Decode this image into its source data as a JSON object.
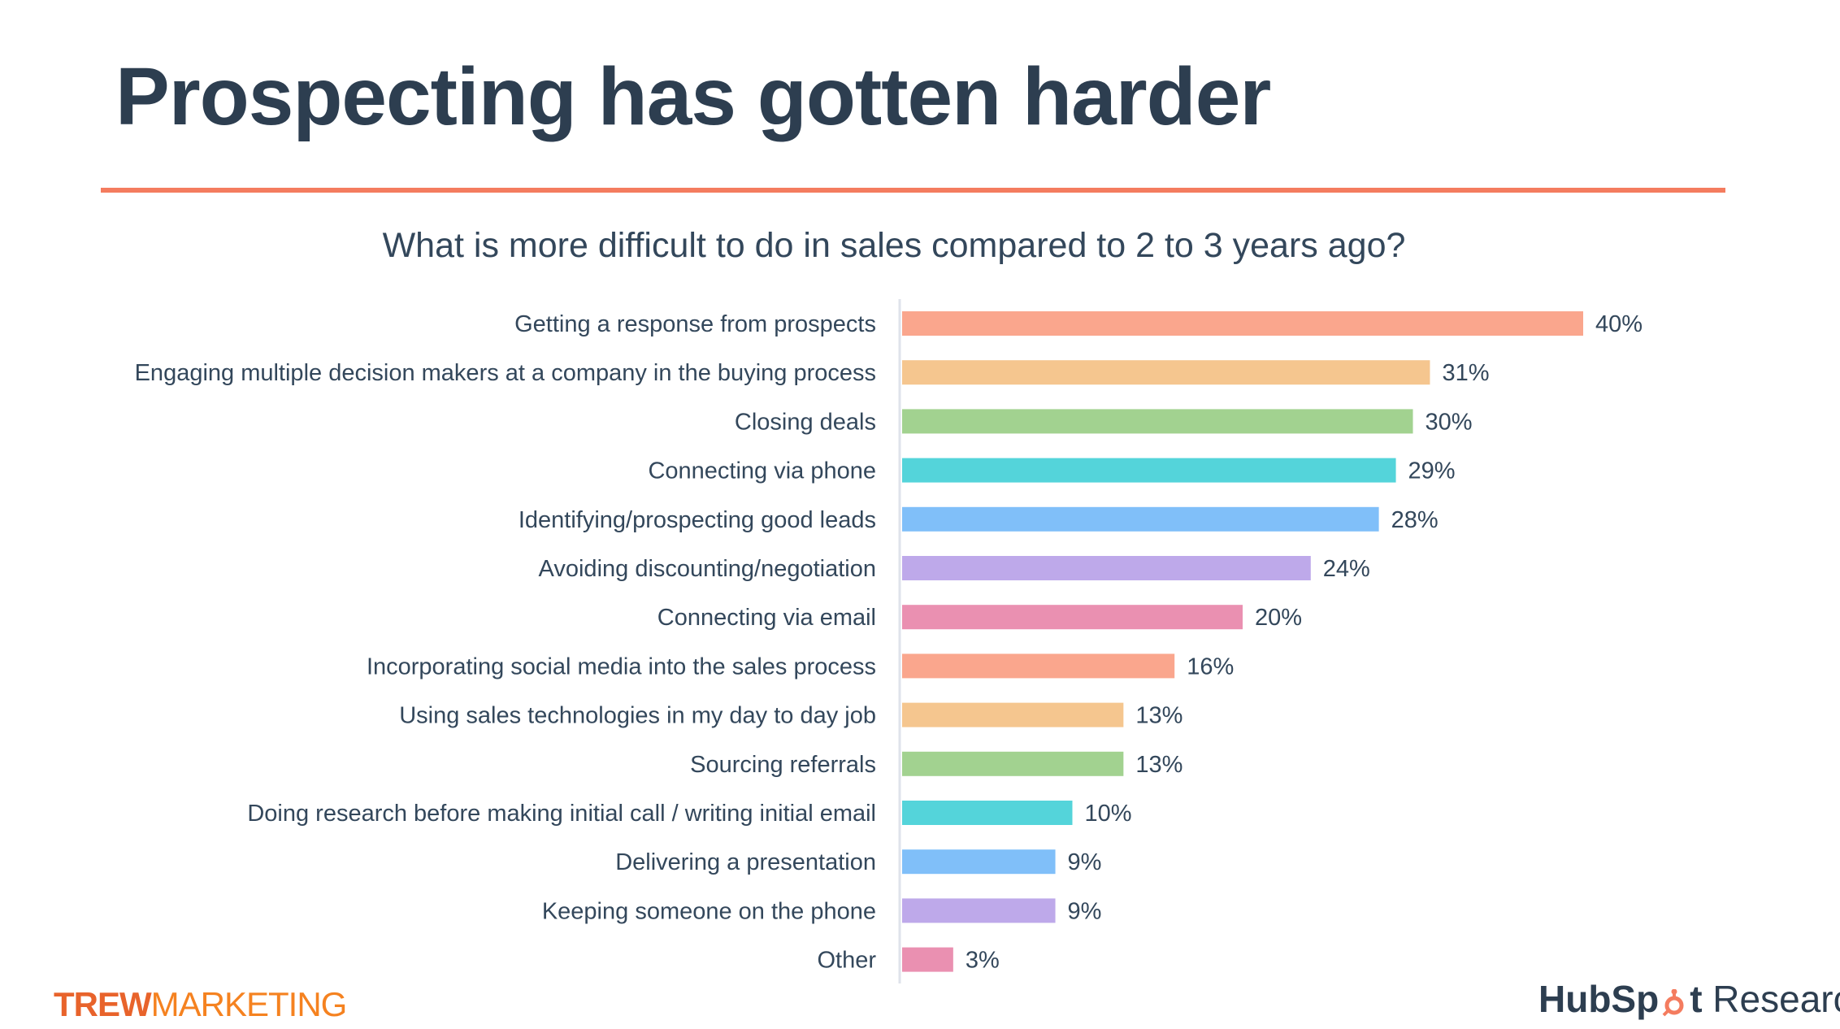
{
  "slide": {
    "title": "Prospecting has gotten harder",
    "accent_color": "#f47c5f"
  },
  "chart_data": {
    "type": "bar",
    "orientation": "horizontal",
    "title": "What is more difficult to do in sales compared to 2 to 3 years ago?",
    "categories": [
      "Getting a response from prospects",
      "Engaging multiple decision makers at a company in the buying process",
      "Closing deals",
      "Connecting via phone",
      "Identifying/prospecting good leads",
      "Avoiding discounting/negotiation",
      "Connecting via email",
      "Incorporating social media into the sales process",
      "Using sales technologies in my day to day job",
      "Sourcing referrals",
      "Doing research before making initial call / writing initial email",
      "Delivering a presentation",
      "Keeping someone on the phone",
      "Other"
    ],
    "values": [
      40,
      31,
      30,
      29,
      28,
      24,
      20,
      16,
      13,
      13,
      10,
      9,
      9,
      3
    ],
    "value_labels": [
      "40%",
      "31%",
      "30%",
      "29%",
      "28%",
      "24%",
      "20%",
      "16%",
      "13%",
      "13%",
      "10%",
      "9%",
      "9%",
      "3%"
    ],
    "colors": [
      "#faa68d",
      "#f5c68f",
      "#a2d290",
      "#54d4da",
      "#80bff9",
      "#bea9ea",
      "#ea90b1"
    ],
    "xlim": [
      0,
      40
    ],
    "grid": false,
    "legend": "none"
  },
  "footer": {
    "left_logo_a": "TREW",
    "left_logo_b": "MARKETING",
    "left_logo_color_a": "#e8632b",
    "left_logo_color_b": "#f58220",
    "right_logo_a": "HubSp",
    "right_logo_b": "t",
    "right_logo_c": " Research",
    "right_logo_accent": "#f47c5f",
    "right_logo_icon": "hubspot-sprocket-icon"
  }
}
